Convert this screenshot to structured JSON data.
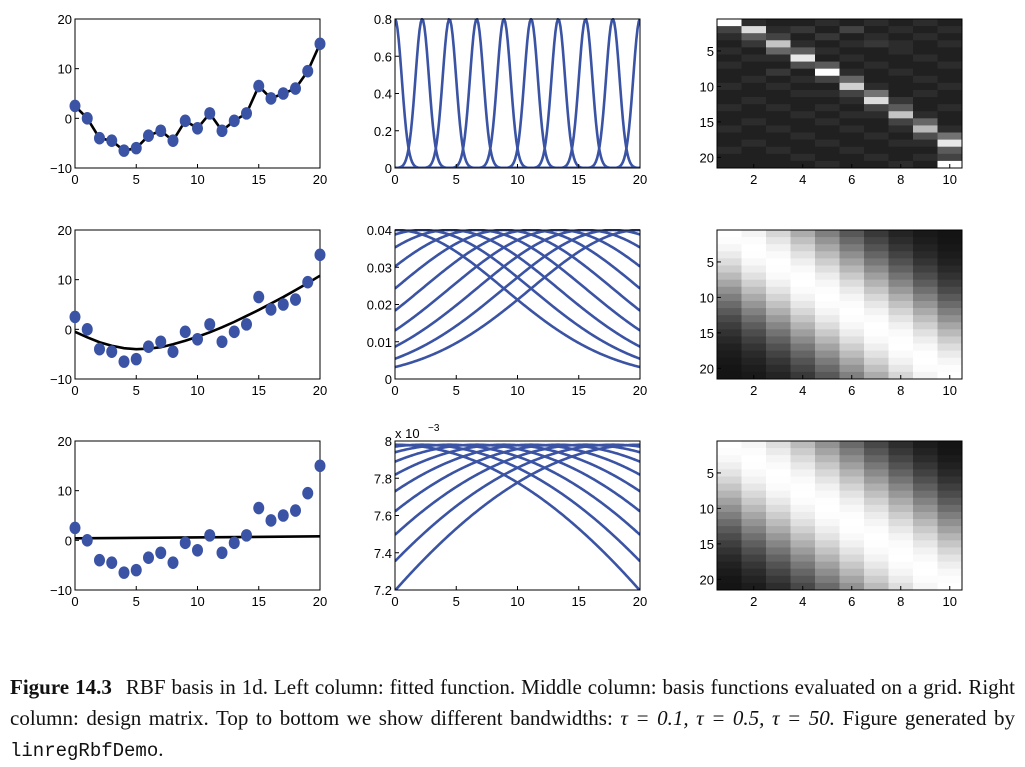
{
  "caption": {
    "label": "Figure 14.3",
    "part1": "RBF basis in 1d. Left column: fitted function. Middle column: basis functions evaluated on a grid. Right column: design matrix. Top to bottom we show different bandwidths:",
    "tau1": "τ = 0.1,",
    "tau2": "τ = 0.5,",
    "tau3": "τ = 50.",
    "part2": "Figure generated by",
    "code": "linregRbfDemo",
    "end": "."
  },
  "chart_data": [
    {
      "type": "scatter",
      "position": "row1-col1",
      "xlim": [
        0,
        20
      ],
      "ylim": [
        -10,
        20
      ],
      "xticks": [
        "0",
        "5",
        "10",
        "15",
        "20"
      ],
      "yticks": [
        "−10",
        "0",
        "10",
        "20"
      ],
      "points": [
        [
          0,
          2.5
        ],
        [
          1,
          0
        ],
        [
          2,
          -4
        ],
        [
          3,
          -4.5
        ],
        [
          4,
          -6.5
        ],
        [
          5,
          -6
        ],
        [
          6,
          -3.5
        ],
        [
          7,
          -2.5
        ],
        [
          8,
          -4.5
        ],
        [
          9,
          -0.5
        ],
        [
          10,
          -2
        ],
        [
          11,
          1
        ],
        [
          12,
          -2.5
        ],
        [
          13,
          -0.5
        ],
        [
          14,
          1
        ],
        [
          15,
          6.5
        ],
        [
          16,
          4
        ],
        [
          17,
          5
        ],
        [
          18,
          6
        ],
        [
          19,
          9.5
        ],
        [
          20,
          15
        ]
      ],
      "fit": [
        [
          0,
          2.5
        ],
        [
          1,
          0
        ],
        [
          2,
          -4
        ],
        [
          3,
          -4.5
        ],
        [
          4,
          -6.5
        ],
        [
          5,
          -6
        ],
        [
          6,
          -3.5
        ],
        [
          7,
          -2.5
        ],
        [
          8,
          -4.5
        ],
        [
          9,
          -0.5
        ],
        [
          10,
          -2
        ],
        [
          11,
          1
        ],
        [
          12,
          -2.5
        ],
        [
          13,
          -0.5
        ],
        [
          14,
          1
        ],
        [
          15,
          6.5
        ],
        [
          16,
          4
        ],
        [
          17,
          5
        ],
        [
          18,
          6
        ],
        [
          19,
          9.5
        ],
        [
          20,
          15
        ]
      ],
      "point_color": "#3a53a4",
      "line_color": "#000000"
    },
    {
      "type": "line",
      "position": "row1-col2",
      "xlim": [
        0,
        20
      ],
      "ylim": [
        0,
        0.8
      ],
      "xticks": [
        "0",
        "5",
        "10",
        "15",
        "20"
      ],
      "yticks": [
        "0",
        "0.2",
        "0.4",
        "0.6",
        "0.8"
      ],
      "centers": [
        0,
        2.22,
        4.44,
        6.67,
        8.89,
        11.11,
        13.33,
        15.56,
        17.78,
        20
      ],
      "amplitude": 0.8,
      "sigma": 0.55,
      "line_color": "#3a53a4"
    },
    {
      "type": "heatmap",
      "position": "row1-col3",
      "rows": 21,
      "cols": 10,
      "xticks": [
        "2",
        "4",
        "6",
        "8",
        "10"
      ],
      "yticks": [
        "5",
        "10",
        "15",
        "20"
      ],
      "values": [
        [
          1.0,
          0.1,
          0.05,
          0.05,
          0.1,
          0.05,
          0.1,
          0.05,
          0.1,
          0.05
        ],
        [
          0.2,
          0.85,
          0.1,
          0.15,
          0.05,
          0.2,
          0.05,
          0.1,
          0.05,
          0.1
        ],
        [
          0.1,
          0.3,
          0.2,
          0.05,
          0.15,
          0.05,
          0.1,
          0.05,
          0.1,
          0.05
        ],
        [
          0.05,
          0.15,
          0.75,
          0.1,
          0.05,
          0.1,
          0.15,
          0.1,
          0.05,
          0.1
        ],
        [
          0.1,
          0.05,
          0.35,
          0.3,
          0.1,
          0.05,
          0.05,
          0.1,
          0.05,
          0.05
        ],
        [
          0.05,
          0.1,
          0.1,
          0.9,
          0.05,
          0.1,
          0.05,
          0.05,
          0.1,
          0.05
        ],
        [
          0.1,
          0.05,
          0.05,
          0.25,
          0.3,
          0.05,
          0.1,
          0.05,
          0.05,
          0.1
        ],
        [
          0.05,
          0.05,
          0.15,
          0.05,
          1.0,
          0.1,
          0.05,
          0.1,
          0.05,
          0.05
        ],
        [
          0.05,
          0.1,
          0.05,
          0.1,
          0.2,
          0.35,
          0.05,
          0.05,
          0.1,
          0.05
        ],
        [
          0.1,
          0.05,
          0.1,
          0.05,
          0.05,
          0.8,
          0.1,
          0.05,
          0.05,
          0.1
        ],
        [
          0.05,
          0.05,
          0.05,
          0.1,
          0.1,
          0.2,
          0.4,
          0.05,
          0.1,
          0.05
        ],
        [
          0.05,
          0.1,
          0.05,
          0.05,
          0.05,
          0.1,
          0.85,
          0.15,
          0.05,
          0.05
        ],
        [
          0.1,
          0.05,
          0.1,
          0.05,
          0.1,
          0.05,
          0.2,
          0.3,
          0.05,
          0.1
        ],
        [
          0.05,
          0.05,
          0.05,
          0.1,
          0.05,
          0.1,
          0.1,
          0.75,
          0.1,
          0.05
        ],
        [
          0.05,
          0.1,
          0.05,
          0.05,
          0.1,
          0.05,
          0.05,
          0.2,
          0.35,
          0.05
        ],
        [
          0.1,
          0.05,
          0.1,
          0.05,
          0.05,
          0.1,
          0.05,
          0.1,
          0.7,
          0.1
        ],
        [
          0.05,
          0.05,
          0.05,
          0.1,
          0.05,
          0.05,
          0.1,
          0.05,
          0.25,
          0.4
        ],
        [
          0.05,
          0.1,
          0.05,
          0.05,
          0.1,
          0.05,
          0.05,
          0.1,
          0.1,
          0.9
        ],
        [
          0.1,
          0.05,
          0.1,
          0.05,
          0.05,
          0.1,
          0.05,
          0.05,
          0.05,
          0.3
        ],
        [
          0.05,
          0.05,
          0.05,
          0.1,
          0.05,
          0.05,
          0.1,
          0.05,
          0.1,
          0.2
        ],
        [
          0.05,
          0.05,
          0.05,
          0.05,
          0.1,
          0.05,
          0.05,
          0.1,
          0.05,
          1.0
        ]
      ]
    },
    {
      "type": "scatter",
      "position": "row2-col1",
      "xlim": [
        0,
        20
      ],
      "ylim": [
        -10,
        20
      ],
      "xticks": [
        "0",
        "5",
        "10",
        "15",
        "20"
      ],
      "yticks": [
        "−10",
        "0",
        "10",
        "20"
      ],
      "points": [
        [
          0,
          2.5
        ],
        [
          1,
          0
        ],
        [
          2,
          -4
        ],
        [
          3,
          -4.5
        ],
        [
          4,
          -6.5
        ],
        [
          5,
          -6
        ],
        [
          6,
          -3.5
        ],
        [
          7,
          -2.5
        ],
        [
          8,
          -4.5
        ],
        [
          9,
          -0.5
        ],
        [
          10,
          -2
        ],
        [
          11,
          1
        ],
        [
          12,
          -2.5
        ],
        [
          13,
          -0.5
        ],
        [
          14,
          1
        ],
        [
          15,
          6.5
        ],
        [
          16,
          4
        ],
        [
          17,
          5
        ],
        [
          18,
          6
        ],
        [
          19,
          9.5
        ],
        [
          20,
          15
        ]
      ],
      "fit": [
        [
          0,
          -0.5
        ],
        [
          1,
          -1.6
        ],
        [
          2,
          -2.6
        ],
        [
          3,
          -3.3
        ],
        [
          4,
          -3.8
        ],
        [
          5,
          -4
        ],
        [
          6,
          -3.9
        ],
        [
          7,
          -3.6
        ],
        [
          8,
          -3
        ],
        [
          9,
          -2.3
        ],
        [
          10,
          -1.5
        ],
        [
          11,
          -0.6
        ],
        [
          12,
          0.4
        ],
        [
          13,
          1.5
        ],
        [
          14,
          2.7
        ],
        [
          15,
          3.9
        ],
        [
          16,
          5.2
        ],
        [
          17,
          6.5
        ],
        [
          18,
          7.9
        ],
        [
          19,
          9.3
        ],
        [
          20,
          10.8
        ]
      ],
      "point_color": "#3a53a4",
      "line_color": "#000000"
    },
    {
      "type": "line",
      "position": "row2-col2",
      "xlim": [
        0,
        20
      ],
      "ylim": [
        0,
        0.04
      ],
      "xticks": [
        "0",
        "5",
        "10",
        "15",
        "20"
      ],
      "yticks": [
        "0",
        "0.01",
        "0.02",
        "0.03",
        "0.04"
      ],
      "centers": [
        0,
        2.22,
        4.44,
        6.67,
        8.89,
        11.11,
        13.33,
        15.56,
        17.78,
        20
      ],
      "amplitude": 0.04,
      "sigma": 8.9,
      "line_color": "#3a53a4"
    },
    {
      "type": "heatmap",
      "position": "row2-col3",
      "rows": 21,
      "cols": 10,
      "xticks": [
        "2",
        "4",
        "6",
        "8",
        "10"
      ],
      "yticks": [
        "5",
        "10",
        "15",
        "20"
      ],
      "sigma_grid": 8.9
    },
    {
      "type": "scatter",
      "position": "row3-col1",
      "xlim": [
        0,
        20
      ],
      "ylim": [
        -10,
        20
      ],
      "xticks": [
        "0",
        "5",
        "10",
        "15",
        "20"
      ],
      "yticks": [
        "−10",
        "0",
        "10",
        "20"
      ],
      "points": [
        [
          0,
          2.5
        ],
        [
          1,
          0
        ],
        [
          2,
          -4
        ],
        [
          3,
          -4.5
        ],
        [
          4,
          -6.5
        ],
        [
          5,
          -6
        ],
        [
          6,
          -3.5
        ],
        [
          7,
          -2.5
        ],
        [
          8,
          -4.5
        ],
        [
          9,
          -0.5
        ],
        [
          10,
          -2
        ],
        [
          11,
          1
        ],
        [
          12,
          -2.5
        ],
        [
          13,
          -0.5
        ],
        [
          14,
          1
        ],
        [
          15,
          6.5
        ],
        [
          16,
          4
        ],
        [
          17,
          5
        ],
        [
          18,
          6
        ],
        [
          19,
          9.5
        ],
        [
          20,
          15
        ]
      ],
      "fit": [
        [
          0,
          0.4
        ],
        [
          20,
          0.8
        ]
      ],
      "point_color": "#3a53a4",
      "line_color": "#000000"
    },
    {
      "type": "line",
      "position": "row3-col2",
      "xlim": [
        0,
        20
      ],
      "ylim": [
        7.2,
        8
      ],
      "xticks": [
        "0",
        "5",
        "10",
        "15",
        "20"
      ],
      "yticks": [
        "7.2",
        "7.4",
        "7.6",
        "7.8",
        "8"
      ],
      "exponent_label": "x 10",
      "exponent": "−3",
      "centers": [
        0,
        2.22,
        4.44,
        6.67,
        8.89,
        11.11,
        13.33,
        15.56,
        17.78,
        20
      ],
      "amplitude": 7.98,
      "sigma": 44,
      "line_color": "#3a53a4"
    },
    {
      "type": "heatmap",
      "position": "row3-col3",
      "rows": 21,
      "cols": 10,
      "xticks": [
        "2",
        "4",
        "6",
        "8",
        "10"
      ],
      "yticks": [
        "5",
        "10",
        "15",
        "20"
      ],
      "sigma_grid": 10.5
    }
  ]
}
